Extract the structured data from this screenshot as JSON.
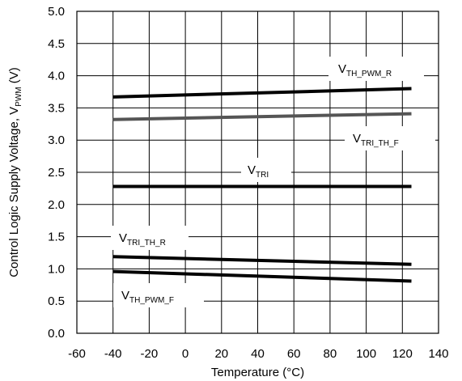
{
  "chart_data": {
    "type": "line",
    "xlabel": "Temperature (°C)",
    "ylabel": {
      "prefix": "Control Logic Supply Voltage, V",
      "sub": "PWM",
      "suffix": " (V)"
    },
    "xlim": [
      -60,
      140
    ],
    "ylim": [
      0,
      5
    ],
    "xticks": [
      -60,
      -40,
      -20,
      0,
      20,
      40,
      60,
      80,
      100,
      120,
      140
    ],
    "yticks": [
      0,
      0.5,
      1,
      1.5,
      2,
      2.5,
      3,
      3.5,
      4,
      4.5,
      5
    ],
    "ytick_labels": [
      "0.0",
      "0.5",
      "1.0",
      "1.5",
      "2.0",
      "2.5",
      "3.0",
      "3.5",
      "4.0",
      "4.5",
      "5.0"
    ],
    "grid": true,
    "series": [
      {
        "label_main": "V",
        "label_sub": "TH_PWM_R",
        "color": "#000000",
        "x": [
          -40,
          125
        ],
        "y": [
          3.67,
          3.8
        ]
      },
      {
        "label_main": "V",
        "label_sub": "TRI_TH_F",
        "color": "#555555",
        "x": [
          -40,
          125
        ],
        "y": [
          3.32,
          3.41
        ]
      },
      {
        "label_main": "V",
        "label_sub": "TRI",
        "color": "#000000",
        "x": [
          -40,
          125
        ],
        "y": [
          2.28,
          2.28
        ]
      },
      {
        "label_main": "V",
        "label_sub": "TRI_TH_R",
        "color": "#000000",
        "x": [
          -40,
          125
        ],
        "y": [
          1.19,
          1.07
        ]
      },
      {
        "label_main": "V",
        "label_sub": "TH_PWM_F",
        "color": "#000000",
        "x": [
          -40,
          125
        ],
        "y": [
          0.96,
          0.81
        ]
      }
    ]
  }
}
